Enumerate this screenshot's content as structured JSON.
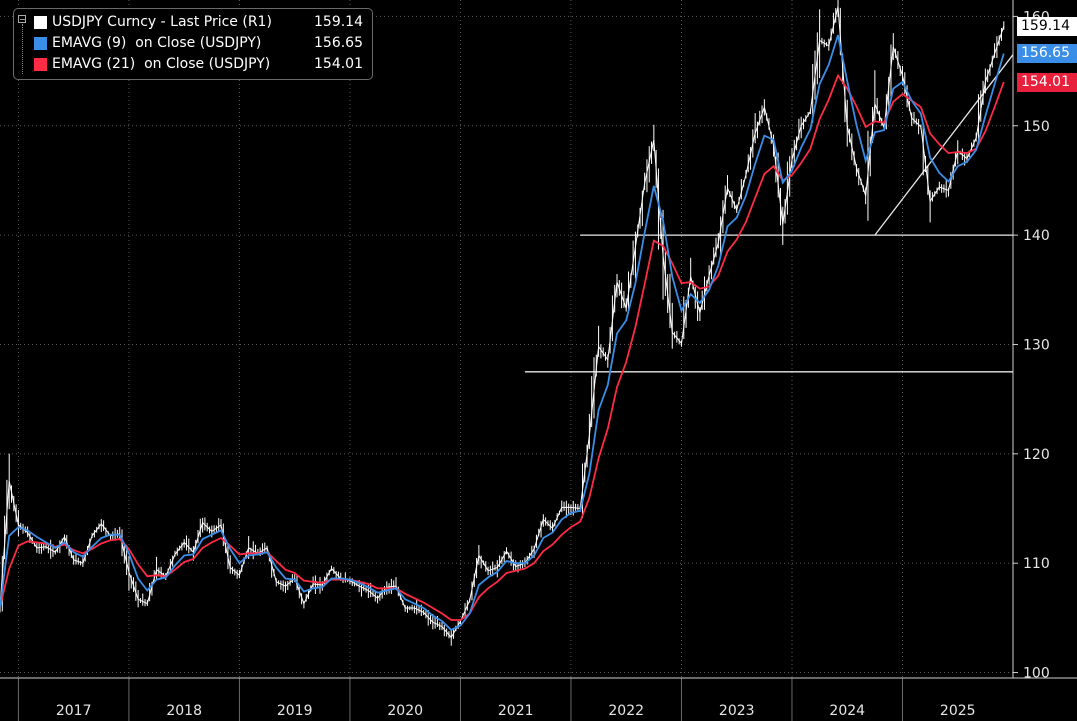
{
  "legend": {
    "items": [
      {
        "name": "USDJPY Curncy - Last Price (R1)",
        "value": "159.14",
        "color": "#ffffff"
      },
      {
        "name": "EMAVG (9)  on Close (USDJPY)",
        "value": "156.65",
        "color": "#3a8ee8"
      },
      {
        "name": "EMAVG (21)  on Close (USDJPY)",
        "value": "154.01",
        "color": "#ff2b45"
      }
    ]
  },
  "price_tags": [
    {
      "label": "159.14",
      "value": 159.14,
      "bg": "#ffffff",
      "fg": "#000000"
    },
    {
      "label": "156.65",
      "value": 156.65,
      "bg": "#3a8ee8",
      "fg": "#ffffff"
    },
    {
      "label": "154.01",
      "value": 154.01,
      "bg": "#e8203c",
      "fg": "#ffffff"
    }
  ],
  "chart_data": {
    "type": "line",
    "title": "",
    "xlabel": "",
    "ylabel": "",
    "x_tick_labels": [
      "2017",
      "2018",
      "2019",
      "2020",
      "2021",
      "2022",
      "2023",
      "2024",
      "2025"
    ],
    "y_tick_labels": [
      "100",
      "110",
      "120",
      "130",
      "140",
      "150",
      "160"
    ],
    "ylim": [
      99.5,
      161.5
    ],
    "xlim": [
      "2016-11",
      "2026-01"
    ],
    "y_axis_side": "right",
    "grid": true,
    "legend_position": "top-left",
    "series": [
      {
        "name": "USDJPY Curncy - Last Price (R1)",
        "color": "#ffffff",
        "x": [
          "2016-11",
          "2016-12",
          "2017-01",
          "2017-02",
          "2017-03",
          "2017-04",
          "2017-05",
          "2017-06",
          "2017-07",
          "2017-08",
          "2017-09",
          "2017-10",
          "2017-11",
          "2017-12",
          "2018-01",
          "2018-02",
          "2018-03",
          "2018-04",
          "2018-05",
          "2018-06",
          "2018-07",
          "2018-08",
          "2018-09",
          "2018-10",
          "2018-11",
          "2018-12",
          "2019-01",
          "2019-02",
          "2019-03",
          "2019-04",
          "2019-05",
          "2019-06",
          "2019-07",
          "2019-08",
          "2019-09",
          "2019-10",
          "2019-11",
          "2019-12",
          "2020-01",
          "2020-02",
          "2020-03",
          "2020-04",
          "2020-05",
          "2020-06",
          "2020-07",
          "2020-08",
          "2020-09",
          "2020-10",
          "2020-11",
          "2020-12",
          "2021-01",
          "2021-02",
          "2021-03",
          "2021-04",
          "2021-05",
          "2021-06",
          "2021-07",
          "2021-08",
          "2021-09",
          "2021-10",
          "2021-11",
          "2021-12",
          "2022-01",
          "2022-02",
          "2022-03",
          "2022-04",
          "2022-05",
          "2022-06",
          "2022-07",
          "2022-08",
          "2022-09",
          "2022-10",
          "2022-11",
          "2022-12",
          "2023-01",
          "2023-02",
          "2023-03",
          "2023-04",
          "2023-05",
          "2023-06",
          "2023-07",
          "2023-08",
          "2023-09",
          "2023-10",
          "2023-11",
          "2023-12",
          "2024-01",
          "2024-02",
          "2024-03",
          "2024-04",
          "2024-05",
          "2024-06",
          "2024-07",
          "2024-08",
          "2024-09",
          "2024-10",
          "2024-11",
          "2024-12",
          "2025-01",
          "2025-02",
          "2025-03",
          "2025-04",
          "2025-05",
          "2025-06",
          "2025-07",
          "2025-08",
          "2025-09",
          "2025-10",
          "2025-11",
          "2025-12"
        ],
        "values": [
          106.0,
          117.5,
          113.5,
          112.8,
          111.4,
          111.5,
          111.0,
          112.4,
          110.3,
          110.0,
          112.5,
          113.6,
          112.5,
          112.7,
          109.2,
          106.7,
          106.3,
          109.4,
          108.8,
          110.8,
          111.9,
          111.0,
          113.7,
          112.9,
          113.5,
          109.6,
          108.9,
          111.4,
          110.9,
          111.4,
          108.3,
          107.9,
          108.6,
          106.3,
          108.1,
          108.0,
          109.5,
          108.6,
          108.4,
          107.9,
          107.5,
          106.8,
          107.8,
          107.9,
          105.9,
          105.9,
          105.5,
          104.6,
          104.2,
          103.2,
          104.7,
          106.6,
          110.7,
          109.3,
          109.6,
          111.1,
          109.7,
          110.0,
          111.3,
          114.0,
          113.2,
          115.1,
          115.1,
          115.0,
          121.7,
          129.8,
          128.6,
          135.7,
          133.3,
          138.9,
          144.7,
          148.7,
          138.1,
          131.1,
          130.1,
          136.2,
          132.9,
          136.3,
          139.3,
          144.3,
          142.3,
          145.5,
          149.3,
          151.7,
          148.2,
          141.0,
          146.9,
          150.0,
          151.3,
          157.8,
          157.3,
          160.9,
          150.0,
          146.2,
          143.6,
          152.0,
          149.8,
          157.2,
          154.6,
          150.7,
          149.9,
          143.1,
          144.4,
          144.1,
          147.7,
          147.0,
          148.9,
          154.0,
          156.6,
          159.1
        ]
      },
      {
        "name": "EMAVG (9)  on Close (USDJPY)",
        "color": "#3a8ee8",
        "x": [
          "2016-11",
          "2016-12",
          "2017-01",
          "2017-02",
          "2017-03",
          "2017-04",
          "2017-05",
          "2017-06",
          "2017-07",
          "2017-08",
          "2017-09",
          "2017-10",
          "2017-11",
          "2017-12",
          "2018-01",
          "2018-02",
          "2018-03",
          "2018-04",
          "2018-05",
          "2018-06",
          "2018-07",
          "2018-08",
          "2018-09",
          "2018-10",
          "2018-11",
          "2018-12",
          "2019-01",
          "2019-02",
          "2019-03",
          "2019-04",
          "2019-05",
          "2019-06",
          "2019-07",
          "2019-08",
          "2019-09",
          "2019-10",
          "2019-11",
          "2019-12",
          "2020-01",
          "2020-02",
          "2020-03",
          "2020-04",
          "2020-05",
          "2020-06",
          "2020-07",
          "2020-08",
          "2020-09",
          "2020-10",
          "2020-11",
          "2020-12",
          "2021-01",
          "2021-02",
          "2021-03",
          "2021-04",
          "2021-05",
          "2021-06",
          "2021-07",
          "2021-08",
          "2021-09",
          "2021-10",
          "2021-11",
          "2021-12",
          "2022-01",
          "2022-02",
          "2022-03",
          "2022-04",
          "2022-05",
          "2022-06",
          "2022-07",
          "2022-08",
          "2022-09",
          "2022-10",
          "2022-11",
          "2022-12",
          "2023-01",
          "2023-02",
          "2023-03",
          "2023-04",
          "2023-05",
          "2023-06",
          "2023-07",
          "2023-08",
          "2023-09",
          "2023-10",
          "2023-11",
          "2023-12",
          "2024-01",
          "2024-02",
          "2024-03",
          "2024-04",
          "2024-05",
          "2024-06",
          "2024-07",
          "2024-08",
          "2024-09",
          "2024-10",
          "2024-11",
          "2024-12",
          "2025-01",
          "2025-02",
          "2025-03",
          "2025-04",
          "2025-05",
          "2025-06",
          "2025-07",
          "2025-08",
          "2025-09",
          "2025-10",
          "2025-11",
          "2025-12"
        ],
        "values": [
          106.0,
          112.5,
          113.3,
          113.0,
          112.4,
          111.9,
          111.4,
          111.9,
          111.0,
          110.6,
          111.5,
          112.3,
          112.6,
          112.6,
          110.9,
          108.6,
          107.5,
          108.5,
          108.7,
          109.8,
          110.7,
          110.8,
          112.2,
          112.6,
          113.0,
          111.3,
          110.0,
          110.7,
          110.8,
          111.0,
          109.6,
          108.6,
          108.5,
          107.4,
          107.7,
          107.8,
          108.6,
          108.6,
          108.5,
          108.2,
          107.8,
          107.3,
          107.5,
          107.7,
          106.7,
          106.3,
          105.9,
          105.2,
          104.7,
          103.9,
          104.3,
          105.4,
          108.0,
          108.7,
          109.2,
          110.2,
          110.0,
          110.0,
          110.7,
          112.3,
          112.8,
          114.0,
          114.6,
          114.8,
          118.2,
          124.0,
          126.3,
          131.0,
          132.2,
          135.6,
          140.2,
          144.5,
          141.3,
          136.2,
          133.1,
          134.6,
          133.8,
          135.0,
          137.2,
          140.8,
          141.6,
          143.6,
          146.5,
          149.1,
          148.7,
          144.8,
          145.9,
          148.0,
          149.7,
          153.8,
          155.6,
          158.3,
          154.1,
          150.1,
          146.8,
          149.4,
          149.6,
          153.4,
          154.0,
          152.3,
          151.1,
          147.1,
          145.7,
          144.9,
          146.3,
          146.7,
          147.8,
          150.9,
          153.8,
          156.6
        ]
      },
      {
        "name": "EMAVG (21)  on Close (USDJPY)",
        "color": "#ff2b45",
        "x": [
          "2016-11",
          "2016-12",
          "2017-01",
          "2017-02",
          "2017-03",
          "2017-04",
          "2017-05",
          "2017-06",
          "2017-07",
          "2017-08",
          "2017-09",
          "2017-10",
          "2017-11",
          "2017-12",
          "2018-01",
          "2018-02",
          "2018-03",
          "2018-04",
          "2018-05",
          "2018-06",
          "2018-07",
          "2018-08",
          "2018-09",
          "2018-10",
          "2018-11",
          "2018-12",
          "2019-01",
          "2019-02",
          "2019-03",
          "2019-04",
          "2019-05",
          "2019-06",
          "2019-07",
          "2019-08",
          "2019-09",
          "2019-10",
          "2019-11",
          "2019-12",
          "2020-01",
          "2020-02",
          "2020-03",
          "2020-04",
          "2020-05",
          "2020-06",
          "2020-07",
          "2020-08",
          "2020-09",
          "2020-10",
          "2020-11",
          "2020-12",
          "2021-01",
          "2021-02",
          "2021-03",
          "2021-04",
          "2021-05",
          "2021-06",
          "2021-07",
          "2021-08",
          "2021-09",
          "2021-10",
          "2021-11",
          "2021-12",
          "2022-01",
          "2022-02",
          "2022-03",
          "2022-04",
          "2022-05",
          "2022-06",
          "2022-07",
          "2022-08",
          "2022-09",
          "2022-10",
          "2022-11",
          "2022-12",
          "2023-01",
          "2023-02",
          "2023-03",
          "2023-04",
          "2023-05",
          "2023-06",
          "2023-07",
          "2023-08",
          "2023-09",
          "2023-10",
          "2023-11",
          "2023-12",
          "2024-01",
          "2024-02",
          "2024-03",
          "2024-04",
          "2024-05",
          "2024-06",
          "2024-07",
          "2024-08",
          "2024-09",
          "2024-10",
          "2024-11",
          "2024-12",
          "2025-01",
          "2025-02",
          "2025-03",
          "2025-04",
          "2025-05",
          "2025-06",
          "2025-07",
          "2025-08",
          "2025-09",
          "2025-10",
          "2025-11",
          "2025-12"
        ],
        "values": [
          106.0,
          109.5,
          111.6,
          112.0,
          111.9,
          111.8,
          111.5,
          111.7,
          111.2,
          110.9,
          111.3,
          111.8,
          112.1,
          112.2,
          111.3,
          109.9,
          108.8,
          108.9,
          108.8,
          109.4,
          110.1,
          110.4,
          111.4,
          111.9,
          112.3,
          111.6,
          110.8,
          110.9,
          110.9,
          111.0,
          110.2,
          109.4,
          109.1,
          108.4,
          108.3,
          108.2,
          108.5,
          108.5,
          108.5,
          108.3,
          108.1,
          107.7,
          107.7,
          107.7,
          107.2,
          106.8,
          106.4,
          105.9,
          105.4,
          104.8,
          104.8,
          105.4,
          106.9,
          107.7,
          108.3,
          109.1,
          109.3,
          109.5,
          110.0,
          111.1,
          111.7,
          112.6,
          113.3,
          113.8,
          116.0,
          119.6,
          122.3,
          126.1,
          128.4,
          131.6,
          135.5,
          139.5,
          139.0,
          137.4,
          135.6,
          135.7,
          135.1,
          135.3,
          136.3,
          138.5,
          139.6,
          141.2,
          143.4,
          145.6,
          146.3,
          145.0,
          145.5,
          146.6,
          147.9,
          150.6,
          152.4,
          154.6,
          153.4,
          151.8,
          149.9,
          150.4,
          150.3,
          152.2,
          152.9,
          152.3,
          151.7,
          149.3,
          148.3,
          147.5,
          147.6,
          147.5,
          147.9,
          149.5,
          151.7,
          154.0
        ]
      }
    ],
    "reference_lines": [
      {
        "type": "horizontal",
        "y": 140.0,
        "x_start": "2022-02",
        "x_end": "2026-01"
      },
      {
        "type": "horizontal",
        "y": 127.5,
        "x_start": "2021-08",
        "x_end": "2026-01"
      },
      {
        "type": "trendline",
        "from": {
          "x": "2024-10",
          "y": 140.0
        },
        "to": {
          "x": "2026-01",
          "y": 156.5
        }
      }
    ]
  }
}
